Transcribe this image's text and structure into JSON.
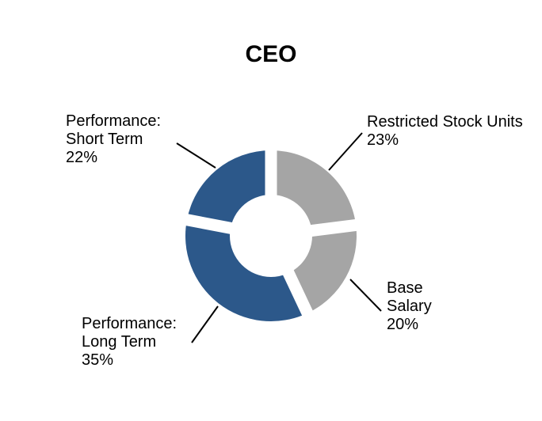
{
  "chart_data": {
    "type": "pie",
    "subtype": "doughnut",
    "title": "CEO",
    "unit": "%",
    "direction": "clockwise",
    "start_angle_deg": 0,
    "legend": "none",
    "background": "#FFFFFF",
    "leader_line_color": "#000000",
    "gap_color": "#FFFFFF",
    "slices": [
      {
        "name": "Restricted Stock Units",
        "value": 23,
        "color": "#A5A5A5",
        "label_text": "Restricted Stock Units\n23%"
      },
      {
        "name": "Base Salary",
        "value": 20,
        "color": "#A5A5A5",
        "label_text": "Base\nSalary\n20%"
      },
      {
        "name": "Performance: Long Term",
        "value": 35,
        "color": "#2C588A",
        "label_text": "Performance:\nLong Term\n35%"
      },
      {
        "name": "Performance: Short Term",
        "value": 22,
        "color": "#2C588A",
        "label_text": "Performance:\nShort Term\n22%"
      }
    ]
  }
}
